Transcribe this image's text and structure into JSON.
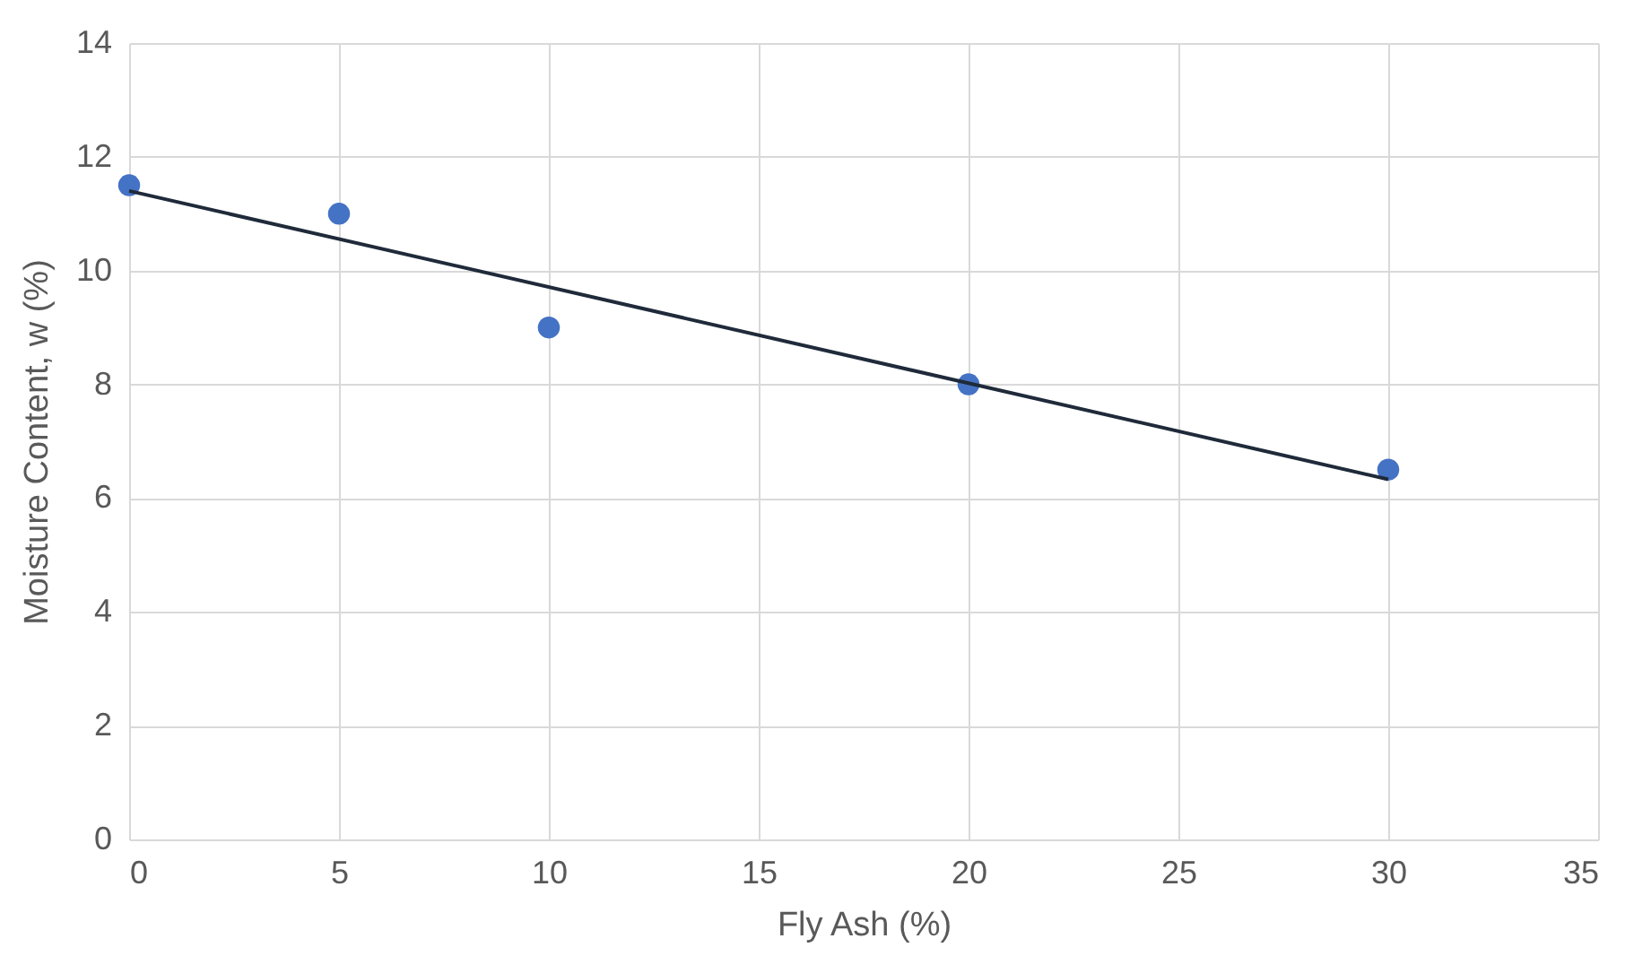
{
  "chart_data": {
    "type": "scatter",
    "xlabel": "Fly Ash (%)",
    "ylabel": "Moisture Content, w (%)",
    "series": [
      {
        "color": "#4472c4",
        "x": [
          0,
          5,
          10,
          20,
          30
        ],
        "values": [
          11.5,
          11,
          9,
          8,
          6.5
        ],
        "marker": "circle"
      },
      {
        "type": "line",
        "color": "#1f2a3a",
        "x": [
          0,
          30
        ],
        "values": [
          11.4,
          6.33
        ],
        "marker": "none",
        "line_style": "solid"
      }
    ],
    "xlim": [
      0,
      35
    ],
    "xticks": [
      0,
      5,
      10,
      15,
      20,
      25,
      30,
      35
    ],
    "ylim": [
      0,
      14
    ],
    "yticks": [
      0,
      2,
      4,
      6,
      8,
      10,
      12,
      14
    ],
    "grid": true
  }
}
